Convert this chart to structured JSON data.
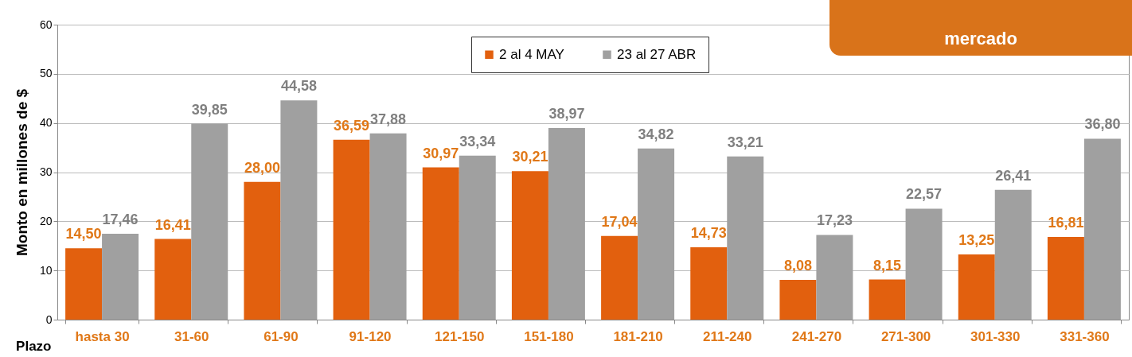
{
  "chart_data": {
    "type": "bar",
    "xlabel": "Plazo",
    "ylabel": "Monto en  millones de $",
    "annotations": [
      "mercado"
    ],
    "categories": [
      "hasta 30",
      "31-60",
      "61-90",
      "91-120",
      "121-150",
      "151-180",
      "181-210",
      "211-240",
      "241-270",
      "271-300",
      "301-330",
      "331-360"
    ],
    "series": [
      {
        "name": "2  al 4 MAY",
        "color": "#e2600e",
        "values": [
          14.5,
          16.41,
          28.0,
          36.59,
          30.97,
          30.21,
          17.04,
          14.73,
          8.08,
          8.15,
          13.25,
          16.81
        ],
        "value_labels": [
          "14,50",
          "16,41",
          "28,00",
          "36,59",
          "30,97",
          "30,21",
          "17,04",
          "14,73",
          "8,08",
          "8,15",
          "13,25",
          "16,81"
        ]
      },
      {
        "name": "23 al 27 ABR",
        "color": "#a0a0a0",
        "values": [
          17.46,
          39.85,
          44.58,
          37.88,
          33.34,
          38.97,
          34.82,
          33.21,
          17.23,
          22.57,
          26.41,
          36.8
        ],
        "value_labels": [
          "17,46",
          "39,85",
          "44,58",
          "37,88",
          "33,34",
          "38,97",
          "34,82",
          "33,21",
          "17,23",
          "22,57",
          "26,41",
          "36,80"
        ]
      }
    ],
    "ylim": [
      0,
      60
    ],
    "yticks": [
      0,
      10,
      20,
      30,
      40,
      50,
      60
    ],
    "grid": "y",
    "legend": "top"
  }
}
